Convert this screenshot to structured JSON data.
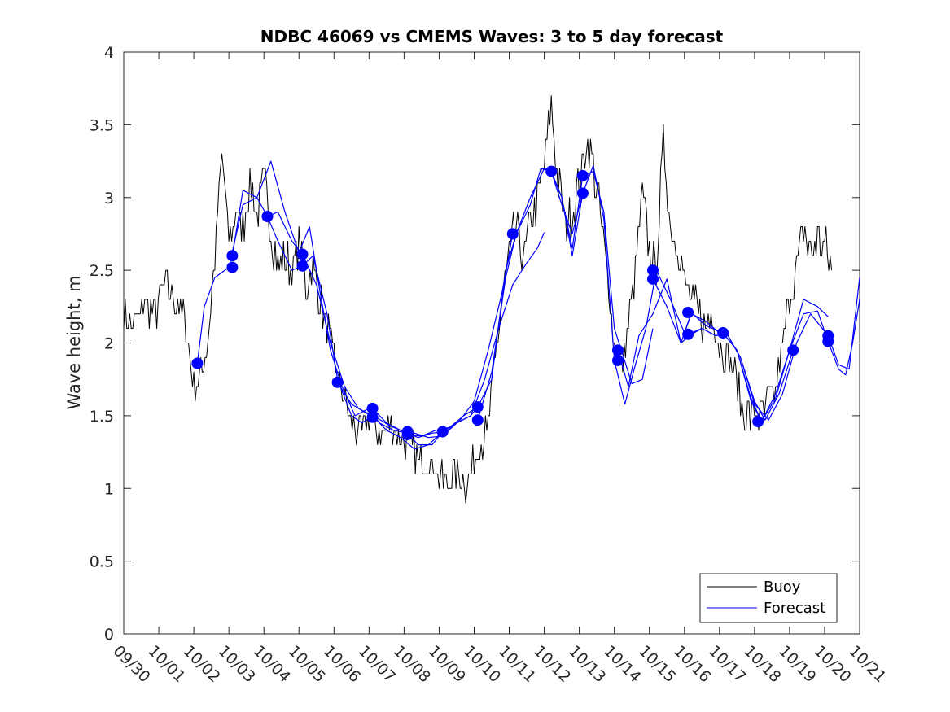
{
  "chart_data": {
    "type": "line",
    "title": "NDBC 46069 vs CMEMS Waves: 3 to 5 day forecast",
    "xlabel": "",
    "ylabel": "Wave height, m",
    "ylim": [
      0,
      4
    ],
    "yticks": [
      0,
      0.5,
      1,
      1.5,
      2,
      2.5,
      3,
      3.5,
      4
    ],
    "ytick_labels": [
      "0",
      "0.5",
      "1",
      "1.5",
      "2",
      "2.5",
      "3",
      "3.5",
      "4"
    ],
    "xlim_days": [
      0,
      21
    ],
    "xtick_labels": [
      "09/30",
      "10/01",
      "10/02",
      "10/03",
      "10/04",
      "10/05",
      "10/06",
      "10/07",
      "10/08",
      "10/09",
      "10/10",
      "10/11",
      "10/12",
      "10/13",
      "10/14",
      "10/15",
      "10/16",
      "10/17",
      "10/18",
      "10/19",
      "10/20",
      "10/21"
    ],
    "legend": {
      "location": "bottom-right",
      "entries": [
        "Buoy",
        "Forecast"
      ]
    },
    "colors": {
      "buoy": "#000000",
      "forecast": "#0000ff",
      "axis": "#262626"
    },
    "series": [
      {
        "name": "Buoy",
        "kind": "line",
        "x": [
          0,
          0.3,
          0.6,
          0.9,
          1.2,
          1.5,
          1.7,
          1.85,
          2.0,
          2.2,
          2.4,
          2.6,
          2.8,
          3.0,
          3.2,
          3.4,
          3.6,
          3.8,
          4.0,
          4.2,
          4.4,
          4.6,
          4.8,
          5.0,
          5.2,
          5.4,
          5.6,
          5.8,
          6.0,
          6.2,
          6.4,
          6.6,
          6.8,
          7.0,
          7.2,
          7.5,
          7.8,
          8.0,
          8.2,
          8.4,
          8.6,
          8.8,
          9.0,
          9.2,
          9.4,
          9.6,
          9.8,
          10.0,
          10.2,
          10.4,
          10.6,
          10.8,
          11.0,
          11.2,
          11.4,
          11.6,
          11.8,
          12.0,
          12.2,
          12.4,
          12.6,
          12.8,
          13.0,
          13.2,
          13.4,
          13.6,
          13.8,
          14.0,
          14.2,
          14.4,
          14.6,
          14.8,
          15.0,
          15.2,
          15.4,
          15.6,
          15.8,
          16.0,
          16.2,
          16.4,
          16.6,
          16.8,
          17.0,
          17.2,
          17.4,
          17.6,
          17.8,
          18.0,
          18.2,
          18.4,
          18.6,
          18.8,
          19.0,
          19.2,
          19.4,
          19.6,
          19.8,
          20.0,
          20.2
        ],
        "y": [
          2.2,
          2.1,
          2.3,
          2.2,
          2.4,
          2.3,
          2.2,
          2.0,
          1.7,
          1.8,
          2.0,
          2.6,
          3.3,
          2.7,
          2.9,
          2.8,
          3.1,
          2.9,
          3.1,
          2.8,
          2.5,
          2.6,
          2.5,
          2.7,
          2.4,
          2.5,
          2.3,
          2.1,
          1.9,
          1.7,
          1.5,
          1.4,
          1.4,
          1.5,
          1.4,
          1.4,
          1.4,
          1.3,
          1.3,
          1.2,
          1.2,
          1.15,
          1.1,
          1.0,
          1.1,
          1.1,
          1.0,
          1.2,
          1.3,
          1.4,
          1.9,
          2.3,
          2.6,
          2.8,
          2.6,
          2.8,
          3.0,
          3.2,
          3.6,
          3.1,
          2.8,
          2.9,
          3.1,
          3.4,
          3.2,
          2.9,
          2.5,
          2.0,
          1.8,
          2.1,
          2.5,
          3.0,
          2.6,
          2.5,
          3.4,
          2.8,
          2.7,
          2.4,
          2.3,
          2.2,
          2.1,
          2.2,
          2.0,
          1.9,
          1.8,
          1.6,
          1.5,
          1.5,
          1.5,
          1.6,
          1.7,
          2.0,
          2.3,
          2.5,
          2.8,
          2.6,
          2.7,
          2.7,
          2.5
        ]
      },
      {
        "name": "Forecast",
        "kind": "lines",
        "runs": [
          {
            "x": [
              2.1,
              2.3,
              2.6,
              3.0,
              3.4,
              3.8,
              4.1,
              4.4,
              4.8,
              5.1,
              5.4,
              5.8,
              6.1,
              6.5,
              6.8,
              7.1
            ],
            "y": [
              1.86,
              2.25,
              2.45,
              2.52,
              2.95,
              3.0,
              2.87,
              2.7,
              2.5,
              2.53,
              2.6,
              2.2,
              1.75,
              1.5,
              1.45,
              1.5
            ]
          },
          {
            "x": [
              3.1,
              3.4,
              3.8,
              4.2,
              4.6,
              5.0,
              5.3,
              5.6,
              5.9,
              6.2,
              6.6,
              7.0,
              7.3,
              7.7,
              8.1,
              8.4,
              8.8,
              9.1
            ],
            "y": [
              2.6,
              3.05,
              3.0,
              3.25,
              2.9,
              2.62,
              2.8,
              2.35,
              1.95,
              1.72,
              1.5,
              1.55,
              1.45,
              1.4,
              1.38,
              1.3,
              1.3,
              1.39
            ]
          },
          {
            "x": [
              4.1,
              4.4,
              4.8,
              5.1,
              5.5,
              5.9,
              6.3,
              6.7,
              7.1,
              7.5,
              7.9,
              8.3,
              8.7,
              9.1,
              9.5,
              9.9,
              10.1
            ],
            "y": [
              2.87,
              2.9,
              2.7,
              2.61,
              2.4,
              2.0,
              1.7,
              1.55,
              1.5,
              1.4,
              1.35,
              1.27,
              1.3,
              1.39,
              1.45,
              1.5,
              1.56
            ]
          },
          {
            "x": [
              6.1,
              6.5,
              6.9,
              7.2,
              7.6,
              8.0,
              8.4,
              8.8,
              9.2,
              9.6,
              10.0,
              10.4,
              10.8,
              11.1
            ],
            "y": [
              1.73,
              1.58,
              1.52,
              1.49,
              1.43,
              1.39,
              1.35,
              1.38,
              1.39,
              1.47,
              1.6,
              1.95,
              2.35,
              2.75
            ]
          },
          {
            "x": [
              7.1,
              7.5,
              7.9,
              8.3,
              8.7,
              9.1,
              9.5,
              9.9,
              10.3,
              10.7,
              11.1,
              11.5,
              11.8,
              12.0
            ],
            "y": [
              1.55,
              1.45,
              1.4,
              1.38,
              1.35,
              1.36,
              1.45,
              1.5,
              1.75,
              2.1,
              2.4,
              2.55,
              2.65,
              2.76
            ]
          },
          {
            "x": [
              8.1,
              8.5,
              8.9,
              9.3,
              9.7,
              10.1,
              10.5,
              10.9,
              11.2,
              11.6,
              12.0,
              12.2,
              12.5,
              12.8,
              13.1
            ],
            "y": [
              1.37,
              1.36,
              1.4,
              1.42,
              1.5,
              1.56,
              1.75,
              2.5,
              2.75,
              3.0,
              3.2,
              3.18,
              2.95,
              2.75,
              3.03
            ]
          },
          {
            "x": [
              10.1,
              10.5,
              10.9,
              11.2,
              11.6,
              11.9,
              12.2,
              12.5,
              12.8,
              13.1,
              13.4,
              13.7,
              14.0,
              14.2,
              14.5,
              14.8,
              15.1
            ],
            "y": [
              1.47,
              1.8,
              2.45,
              2.75,
              2.95,
              3.2,
              3.18,
              3.0,
              2.65,
              3.15,
              3.18,
              2.9,
              2.1,
              1.95,
              1.72,
              1.75,
              2.1
            ]
          },
          {
            "x": [
              12.2,
              12.5,
              12.8,
              13.1,
              13.4,
              13.7,
              14.0,
              14.3,
              14.6,
              14.9,
              15.2,
              15.6,
              16.0,
              16.2,
              16.6,
              17.0
            ],
            "y": [
              3.18,
              3.0,
              2.6,
              3.03,
              3.22,
              2.85,
              1.88,
              1.58,
              1.85,
              2.1,
              2.5,
              2.3,
              2.07,
              2.2,
              2.15,
              2.07
            ]
          },
          {
            "x": [
              14.1,
              14.4,
              14.7,
              15.1,
              15.5,
              15.9,
              16.2,
              16.5,
              16.9,
              17.2,
              17.6,
              18.0,
              18.3,
              18.7,
              19.1
            ],
            "y": [
              1.95,
              1.7,
              2.05,
              2.2,
              2.44,
              2.0,
              2.06,
              2.1,
              2.05,
              2.07,
              1.9,
              1.6,
              1.47,
              1.65,
              1.95
            ]
          },
          {
            "x": [
              15.1,
              15.5,
              15.9,
              16.2,
              16.6,
              17.1,
              17.5,
              17.9,
              18.2,
              18.6,
              19.0,
              19.4,
              19.8,
              20.1
            ],
            "y": [
              2.44,
              2.25,
              2.0,
              2.21,
              2.12,
              2.07,
              1.95,
              1.6,
              1.46,
              1.65,
              1.95,
              2.3,
              2.25,
              2.18
            ]
          },
          {
            "x": [
              16.1,
              16.5,
              16.9,
              17.2,
              17.6,
              18.0,
              18.4,
              18.8,
              19.2,
              19.6,
              20.1,
              20.4,
              20.7,
              21.0
            ],
            "y": [
              2.06,
              2.1,
              2.05,
              2.07,
              1.9,
              1.58,
              1.47,
              1.65,
              2.0,
              2.2,
              2.05,
              1.85,
              1.82,
              2.45
            ]
          },
          {
            "x": [
              17.1,
              17.5,
              17.9,
              18.2,
              18.6,
              19.0,
              19.4,
              19.8,
              20.1,
              20.4,
              20.6,
              20.8,
              21.0
            ],
            "y": [
              2.07,
              1.95,
              1.62,
              1.46,
              1.62,
              1.95,
              2.2,
              2.22,
              2.01,
              1.82,
              1.78,
              2.0,
              2.3
            ]
          }
        ]
      },
      {
        "name": "Forecast initial points",
        "kind": "markers",
        "x": [
          2.1,
          3.1,
          3.1,
          4.1,
          5.1,
          5.1,
          6.1,
          7.1,
          7.1,
          8.1,
          8.1,
          9.1,
          10.1,
          10.1,
          11.1,
          12.2,
          13.1,
          13.1,
          14.1,
          14.1,
          15.1,
          15.1,
          16.1,
          16.1,
          17.1,
          18.1,
          19.1,
          20.1,
          20.1
        ],
        "y": [
          1.86,
          2.6,
          2.52,
          2.87,
          2.61,
          2.53,
          1.73,
          1.55,
          1.49,
          1.39,
          1.37,
          1.39,
          1.56,
          1.47,
          2.75,
          3.18,
          3.15,
          3.03,
          1.95,
          1.88,
          2.5,
          2.44,
          2.21,
          2.06,
          2.07,
          1.46,
          1.95,
          2.05,
          2.01
        ]
      }
    ]
  }
}
